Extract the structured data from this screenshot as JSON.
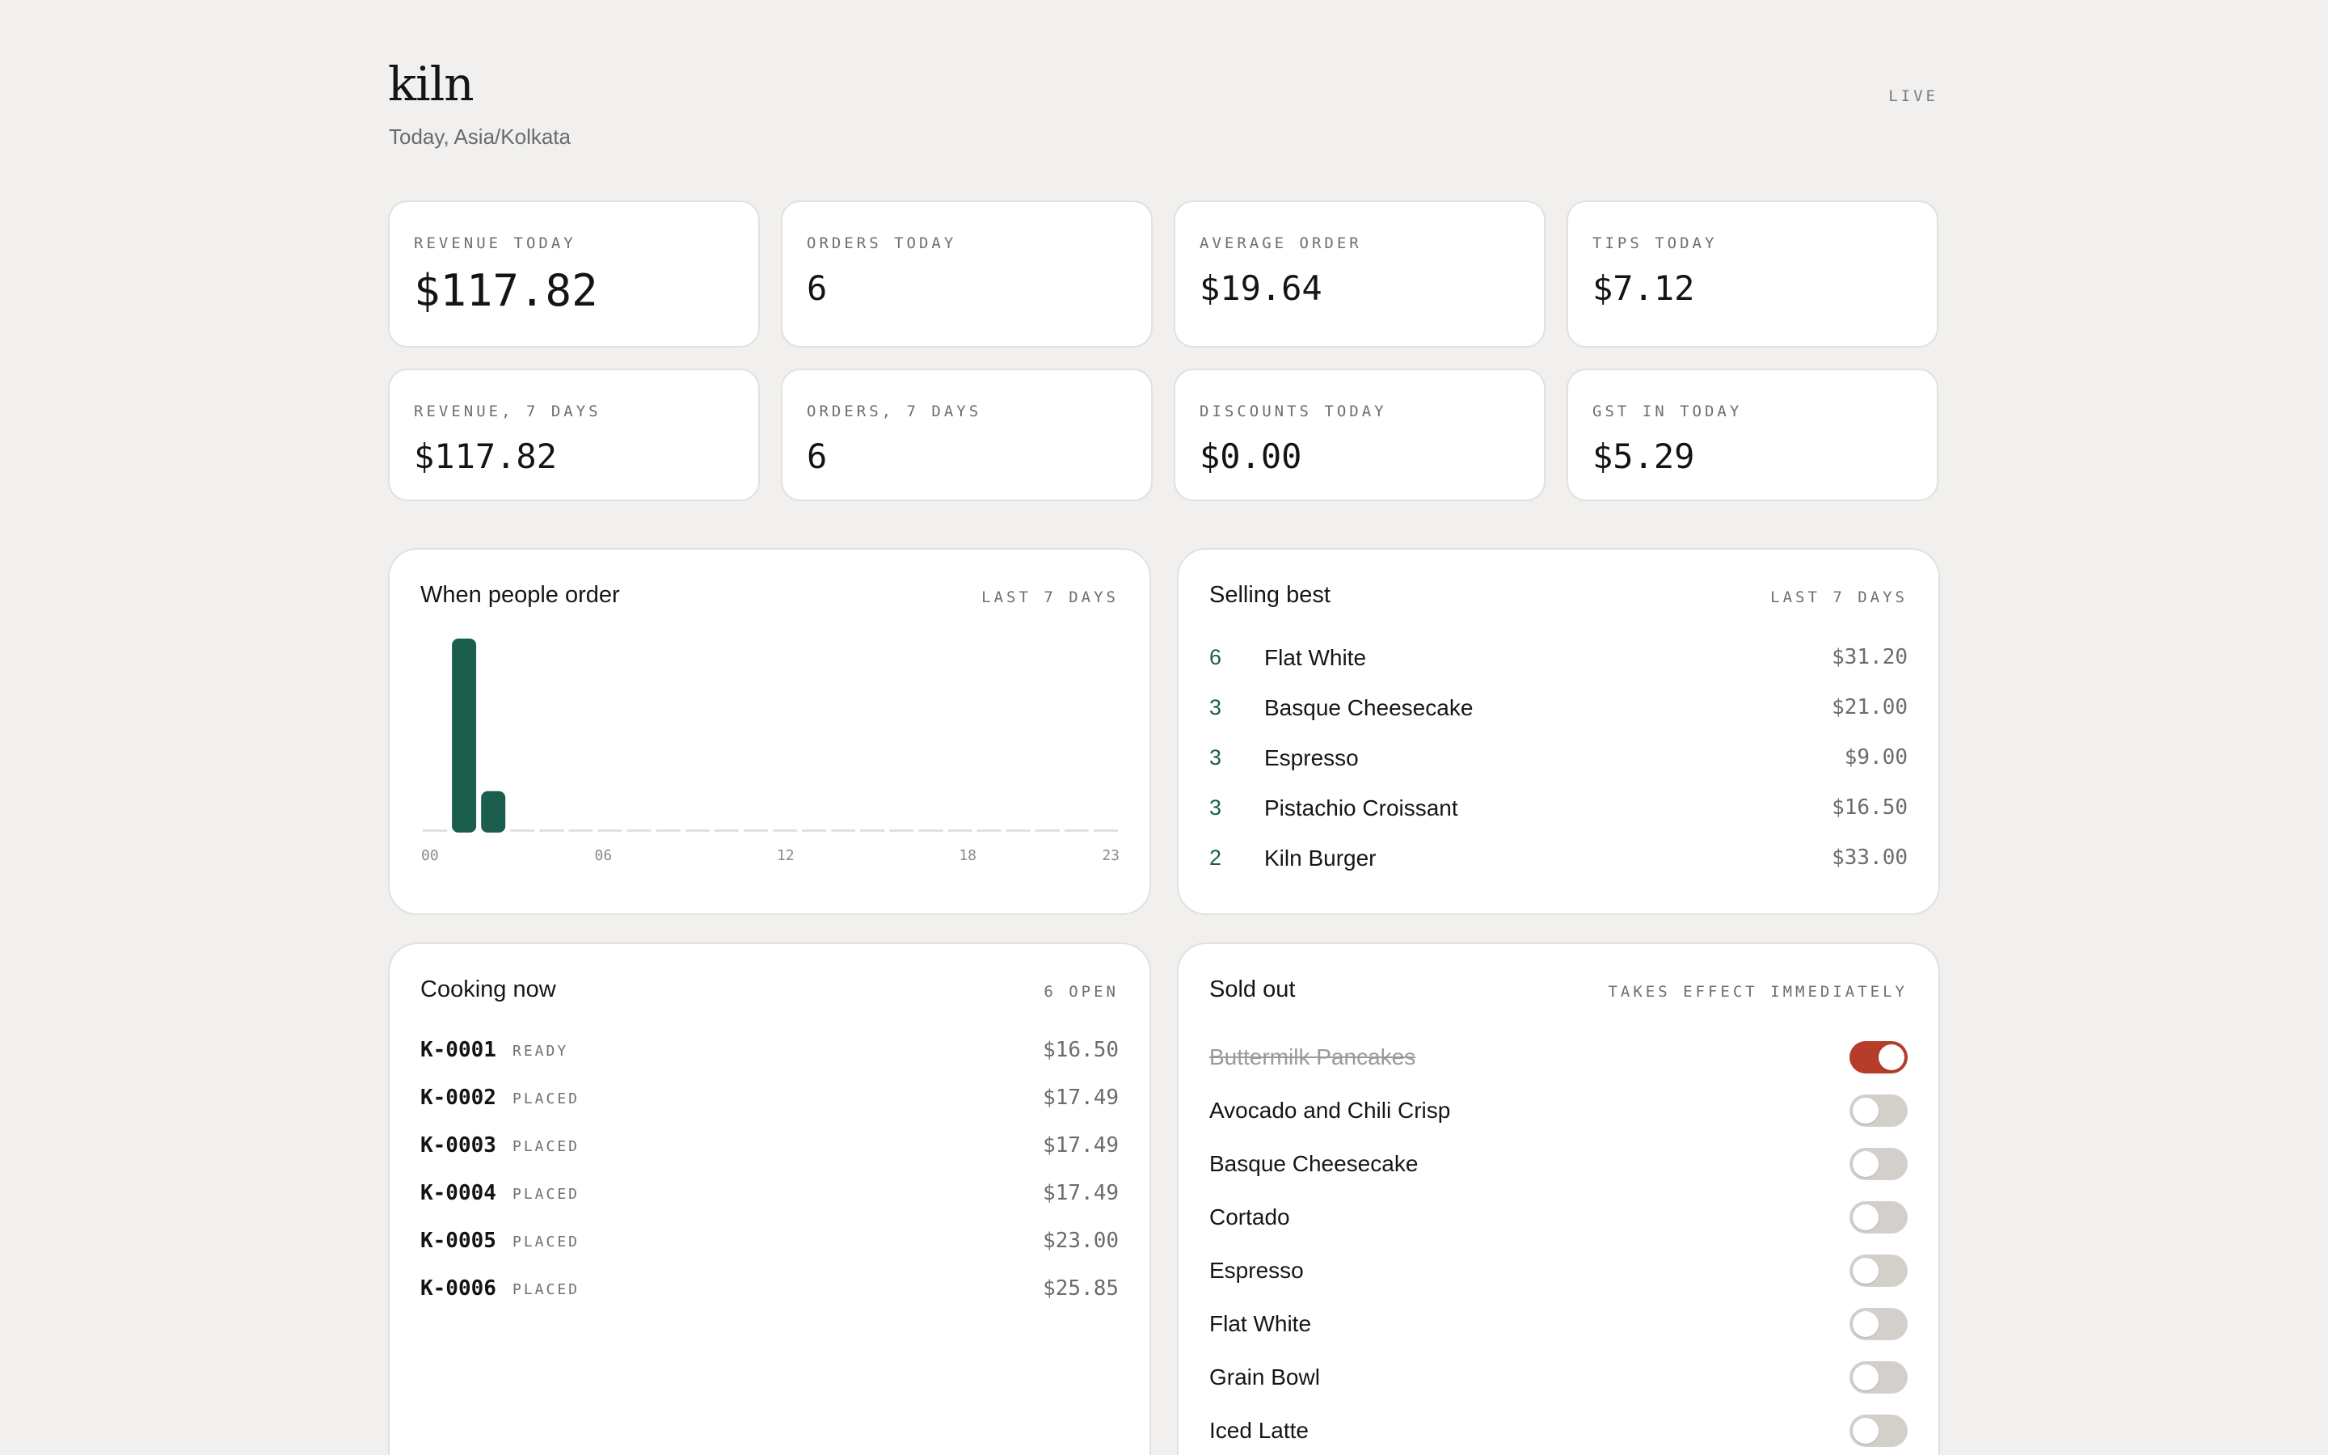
{
  "header": {
    "brand": "kiln",
    "subtitle": "Today, Asia/Kolkata",
    "status": "LIVE"
  },
  "stats": [
    {
      "label": "REVENUE TODAY",
      "value": "$117.82"
    },
    {
      "label": "ORDERS TODAY",
      "value": "6"
    },
    {
      "label": "AVERAGE ORDER",
      "value": "$19.64"
    },
    {
      "label": "TIPS TODAY",
      "value": "$7.12"
    },
    {
      "label": "REVENUE, 7 DAYS",
      "value": "$117.82"
    },
    {
      "label": "ORDERS, 7 DAYS",
      "value": "6"
    },
    {
      "label": "DISCOUNTS TODAY",
      "value": "$0.00"
    },
    {
      "label": "GST IN TODAY",
      "value": "$5.29"
    }
  ],
  "orders_chart": {
    "title": "When people order",
    "meta": "LAST 7 DAYS"
  },
  "chart_data": {
    "type": "bar",
    "x": [
      0,
      1,
      2,
      3,
      4,
      5,
      6,
      7,
      8,
      9,
      10,
      11,
      12,
      13,
      14,
      15,
      16,
      17,
      18,
      19,
      20,
      21,
      22,
      23
    ],
    "values": [
      0,
      5,
      1,
      0,
      0,
      0,
      0,
      0,
      0,
      0,
      0,
      0,
      0,
      0,
      0,
      0,
      0,
      0,
      0,
      0,
      0,
      0,
      0,
      0
    ],
    "tick_labels": [
      "00",
      "06",
      "12",
      "18",
      "23"
    ],
    "tick_positions": [
      0,
      6,
      12,
      18,
      23
    ],
    "bar_color": "#1c5e4e",
    "empty_color": "#e2e0dc"
  },
  "selling_best": {
    "title": "Selling best",
    "meta": "LAST 7 DAYS",
    "items": [
      {
        "qty": "6",
        "name": "Flat White",
        "amount": "$31.20"
      },
      {
        "qty": "3",
        "name": "Basque Cheesecake",
        "amount": "$21.00"
      },
      {
        "qty": "3",
        "name": "Espresso",
        "amount": "$9.00"
      },
      {
        "qty": "3",
        "name": "Pistachio Croissant",
        "amount": "$16.50"
      },
      {
        "qty": "2",
        "name": "Kiln Burger",
        "amount": "$33.00"
      }
    ]
  },
  "cooking_now": {
    "title": "Cooking now",
    "meta": "6 OPEN",
    "orders": [
      {
        "id": "K-0001",
        "status": "READY",
        "amount": "$16.50"
      },
      {
        "id": "K-0002",
        "status": "PLACED",
        "amount": "$17.49"
      },
      {
        "id": "K-0003",
        "status": "PLACED",
        "amount": "$17.49"
      },
      {
        "id": "K-0004",
        "status": "PLACED",
        "amount": "$17.49"
      },
      {
        "id": "K-0005",
        "status": "PLACED",
        "amount": "$23.00"
      },
      {
        "id": "K-0006",
        "status": "PLACED",
        "amount": "$25.85"
      }
    ]
  },
  "sold_out": {
    "title": "Sold out",
    "meta": "TAKES EFFECT IMMEDIATELY",
    "items": [
      {
        "name": "Buttermilk Pancakes",
        "sold_out": true
      },
      {
        "name": "Avocado and Chili Crisp",
        "sold_out": false
      },
      {
        "name": "Basque Cheesecake",
        "sold_out": false
      },
      {
        "name": "Cortado",
        "sold_out": false
      },
      {
        "name": "Espresso",
        "sold_out": false
      },
      {
        "name": "Flat White",
        "sold_out": false
      },
      {
        "name": "Grain Bowl",
        "sold_out": false
      },
      {
        "name": "Iced Latte",
        "sold_out": false
      }
    ]
  },
  "colors": {
    "accent_green": "#1c5e4e",
    "toggle_on": "#b53d2a",
    "toggle_off": "#d3d0cc",
    "background": "#f1f0ee"
  }
}
